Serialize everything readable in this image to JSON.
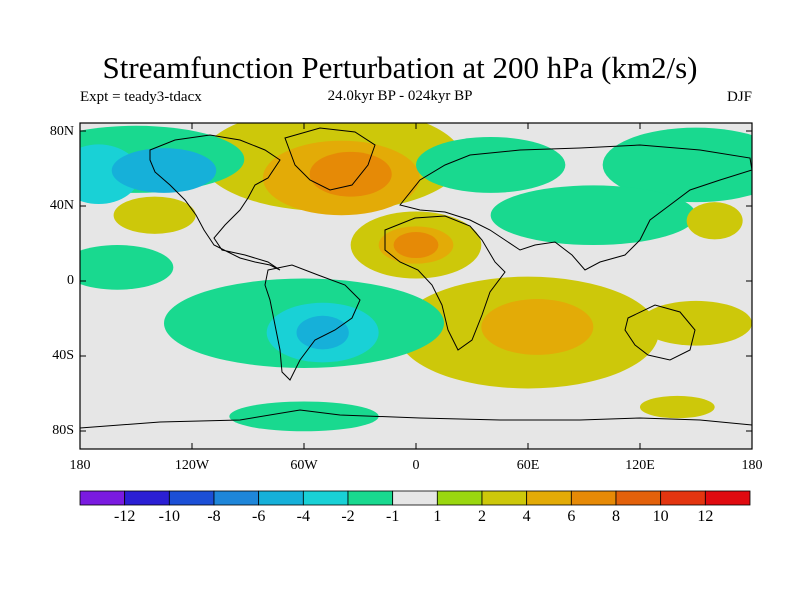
{
  "title": "Streamfunction Perturbation at 200 hPa (km2/s)",
  "left_label": "Expt = teady3-tdacx",
  "center_label": "24.0kyr BP - 024kyr BP",
  "right_label": "DJF",
  "y_ticks": [
    "80N",
    "40N",
    "0",
    "40S",
    "80S"
  ],
  "x_ticks": [
    "180",
    "120W",
    "60W",
    "0",
    "60E",
    "120E",
    "180"
  ],
  "colorbar": {
    "colors": [
      "#7a1be0",
      "#2b1fd4",
      "#1c4fd6",
      "#1e86d9",
      "#16b0d9",
      "#19d1d6",
      "#19d98f",
      "#e6e6e6",
      "#9ad70f",
      "#cdc80a",
      "#e3ab07",
      "#e68a06",
      "#e3610a",
      "#e33510",
      "#e00a10"
    ],
    "labels": [
      "-12",
      "-10",
      "-8",
      "-6",
      "-4",
      "-2",
      "-1",
      "1",
      "2",
      "4",
      "6",
      "8",
      "10",
      "12"
    ]
  },
  "field_blobs": [
    {
      "lon": -45,
      "lat": 68,
      "rx": 70,
      "ry": 28,
      "level": 9
    },
    {
      "lon": -40,
      "lat": 58,
      "rx": 42,
      "ry": 20,
      "level": 10
    },
    {
      "lon": -35,
      "lat": 60,
      "rx": 22,
      "ry": 12,
      "level": 11
    },
    {
      "lon": -150,
      "lat": 68,
      "rx": 58,
      "ry": 18,
      "level": 6
    },
    {
      "lon": -170,
      "lat": 60,
      "rx": 22,
      "ry": 16,
      "level": 5
    },
    {
      "lon": -135,
      "lat": 62,
      "rx": 28,
      "ry": 12,
      "level": 4
    },
    {
      "lon": 150,
      "lat": 65,
      "rx": 50,
      "ry": 20,
      "level": 6
    },
    {
      "lon": 40,
      "lat": 65,
      "rx": 40,
      "ry": 15,
      "level": 6
    },
    {
      "lon": 95,
      "lat": 38,
      "rx": 55,
      "ry": 16,
      "level": 6
    },
    {
      "lon": -140,
      "lat": 38,
      "rx": 22,
      "ry": 10,
      "level": 9
    },
    {
      "lon": 0,
      "lat": 22,
      "rx": 35,
      "ry": 18,
      "level": 9
    },
    {
      "lon": 0,
      "lat": 22,
      "rx": 20,
      "ry": 10,
      "level": 10
    },
    {
      "lon": 0,
      "lat": 22,
      "rx": 12,
      "ry": 7,
      "level": 11
    },
    {
      "lon": 60,
      "lat": -25,
      "rx": 70,
      "ry": 30,
      "level": 9
    },
    {
      "lon": 65,
      "lat": -22,
      "rx": 30,
      "ry": 15,
      "level": 10
    },
    {
      "lon": -60,
      "lat": -20,
      "rx": 75,
      "ry": 24,
      "level": 6
    },
    {
      "lon": -50,
      "lat": -25,
      "rx": 30,
      "ry": 16,
      "level": 5
    },
    {
      "lon": -50,
      "lat": -25,
      "rx": 14,
      "ry": 9,
      "level": 4
    },
    {
      "lon": -160,
      "lat": 10,
      "rx": 30,
      "ry": 12,
      "level": 6
    },
    {
      "lon": 150,
      "lat": -20,
      "rx": 30,
      "ry": 12,
      "level": 9
    },
    {
      "lon": 140,
      "lat": -65,
      "rx": 20,
      "ry": 6,
      "level": 9
    },
    {
      "lon": -60,
      "lat": -70,
      "rx": 40,
      "ry": 8,
      "level": 6
    },
    {
      "lon": 160,
      "lat": 35,
      "rx": 15,
      "ry": 10,
      "level": 9
    }
  ]
}
